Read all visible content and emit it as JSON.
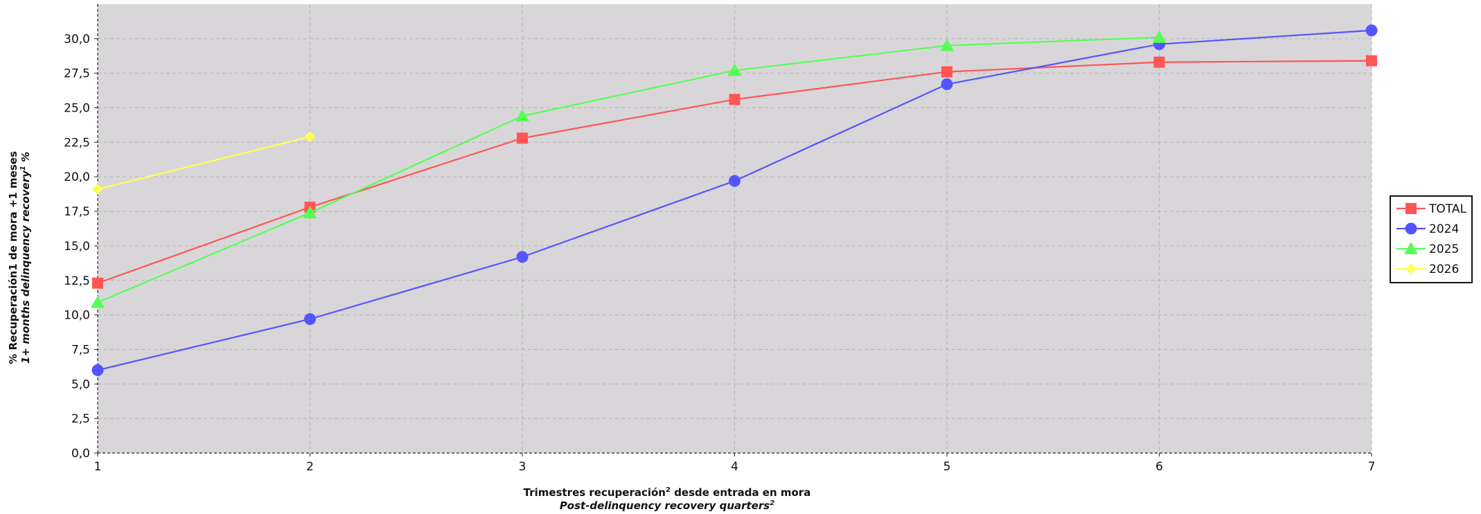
{
  "chart_data": {
    "type": "line",
    "x": [
      1,
      2,
      3,
      4,
      5,
      6,
      7
    ],
    "xlabel_line1": "Trimestres recuperación",
    "xlabel_sup1": "2",
    "xlabel_line1_rest": " desde entrada en mora",
    "xlabel_line2": "Post-delinquency recovery quarters",
    "xlabel_sup2": "2",
    "ylabel_line1": "% Recuperación1 de mora +1 meses",
    "ylabel_line2": "1+ months delinquency recovery",
    "ylabel_sup2": "1",
    "ylabel_line2_rest": " %",
    "xlim": [
      1,
      7
    ],
    "ylim": [
      0,
      32.5
    ],
    "yticks": [
      0,
      2.5,
      5,
      7.5,
      10,
      12.5,
      15,
      17.5,
      20,
      22.5,
      25,
      27.5,
      30
    ],
    "ytick_labels": [
      "0,0",
      "2,5",
      "5,0",
      "7,5",
      "10,0",
      "12,5",
      "15,0",
      "17,5",
      "20,0",
      "22,5",
      "25,0",
      "27,5",
      "30,0"
    ],
    "xtick_labels": [
      "1",
      "2",
      "3",
      "4",
      "5",
      "6",
      "7"
    ],
    "grid": true,
    "legend_position": "right",
    "plot_background": "#d9d6d9",
    "series": [
      {
        "name": "TOTAL",
        "marker": "square",
        "color": "#ff5555",
        "x": [
          1,
          2,
          3,
          4,
          5,
          6,
          7
        ],
        "values": [
          12.3,
          17.8,
          22.8,
          25.6,
          27.6,
          28.3,
          28.4
        ]
      },
      {
        "name": "2024",
        "marker": "circle",
        "color": "#5555ff",
        "x": [
          1,
          2,
          3,
          4,
          5,
          6,
          7
        ],
        "values": [
          6.0,
          9.7,
          14.2,
          19.7,
          26.7,
          29.6,
          30.6
        ]
      },
      {
        "name": "2025",
        "marker": "triangle",
        "color": "#55ff55",
        "x": [
          1,
          2,
          3,
          4,
          5,
          6
        ],
        "values": [
          10.9,
          17.4,
          24.4,
          27.7,
          29.5,
          30.1
        ]
      },
      {
        "name": "2026",
        "marker": "diamond",
        "color": "#ffff55",
        "x": [
          1,
          2
        ],
        "values": [
          19.1,
          22.9
        ]
      }
    ]
  }
}
